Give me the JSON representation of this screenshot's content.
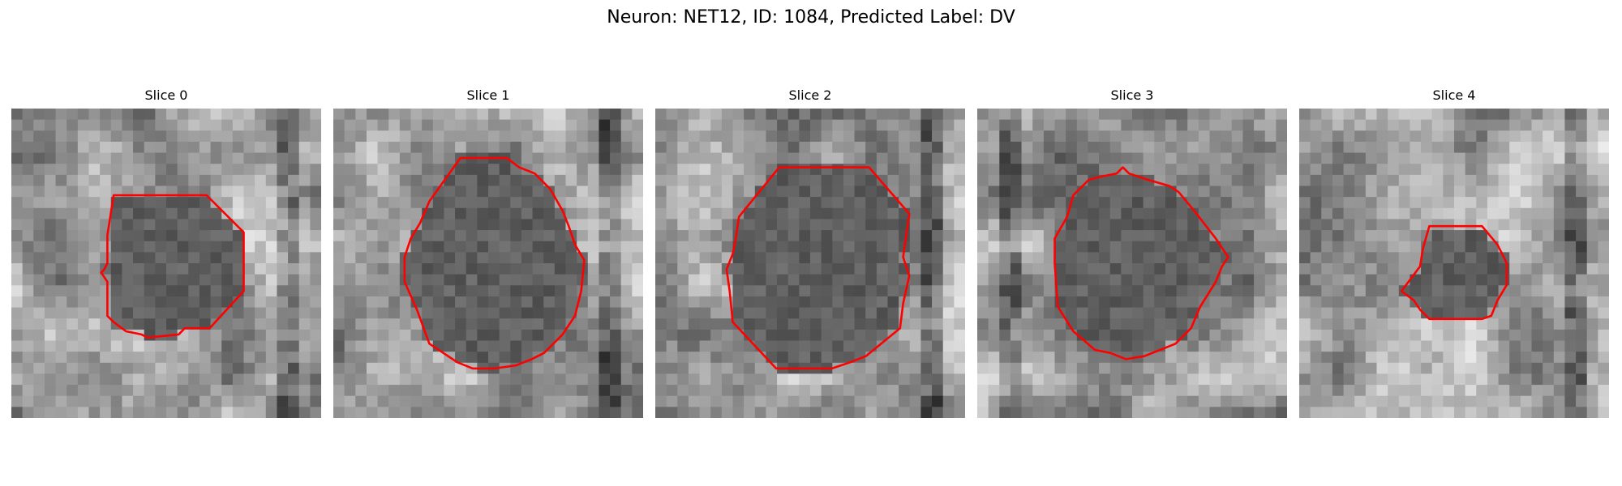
{
  "figure": {
    "title": "Neuron: NET12, ID: 1084, Predicted Label: DV"
  },
  "slices": [
    {
      "label": "Slice 0",
      "seed": 11,
      "darkCol": "right",
      "contour": [
        [
          0.33,
          0.28
        ],
        [
          0.63,
          0.28
        ],
        [
          0.75,
          0.4
        ],
        [
          0.75,
          0.59
        ],
        [
          0.64,
          0.71
        ],
        [
          0.56,
          0.71
        ],
        [
          0.54,
          0.73
        ],
        [
          0.44,
          0.74
        ],
        [
          0.42,
          0.73
        ],
        [
          0.37,
          0.72
        ],
        [
          0.33,
          0.69
        ],
        [
          0.31,
          0.67
        ],
        [
          0.31,
          0.56
        ],
        [
          0.29,
          0.53
        ],
        [
          0.3,
          0.52
        ],
        [
          0.31,
          0.5
        ],
        [
          0.31,
          0.41
        ]
      ]
    },
    {
      "label": "Slice 1",
      "seed": 23,
      "darkCol": "right",
      "contour": [
        [
          0.41,
          0.16
        ],
        [
          0.56,
          0.16
        ],
        [
          0.6,
          0.19
        ],
        [
          0.65,
          0.21
        ],
        [
          0.7,
          0.26
        ],
        [
          0.74,
          0.33
        ],
        [
          0.76,
          0.38
        ],
        [
          0.78,
          0.44
        ],
        [
          0.81,
          0.49
        ],
        [
          0.8,
          0.59
        ],
        [
          0.78,
          0.67
        ],
        [
          0.74,
          0.73
        ],
        [
          0.68,
          0.79
        ],
        [
          0.64,
          0.81
        ],
        [
          0.59,
          0.83
        ],
        [
          0.52,
          0.84
        ],
        [
          0.45,
          0.84
        ],
        [
          0.4,
          0.82
        ],
        [
          0.31,
          0.76
        ],
        [
          0.27,
          0.65
        ],
        [
          0.23,
          0.56
        ],
        [
          0.23,
          0.48
        ],
        [
          0.25,
          0.42
        ],
        [
          0.28,
          0.37
        ],
        [
          0.31,
          0.3
        ]
      ]
    },
    {
      "label": "Slice 2",
      "seed": 37,
      "darkCol": "right",
      "contour": [
        [
          0.4,
          0.19
        ],
        [
          0.69,
          0.19
        ],
        [
          0.82,
          0.34
        ],
        [
          0.8,
          0.48
        ],
        [
          0.82,
          0.54
        ],
        [
          0.8,
          0.63
        ],
        [
          0.79,
          0.71
        ],
        [
          0.68,
          0.8
        ],
        [
          0.63,
          0.82
        ],
        [
          0.57,
          0.84
        ],
        [
          0.39,
          0.84
        ],
        [
          0.25,
          0.69
        ],
        [
          0.24,
          0.59
        ],
        [
          0.23,
          0.52
        ],
        [
          0.25,
          0.47
        ],
        [
          0.26,
          0.42
        ],
        [
          0.27,
          0.35
        ]
      ]
    },
    {
      "label": "Slice 3",
      "seed": 49,
      "darkCol": "left",
      "contour": [
        [
          0.36,
          0.23
        ],
        [
          0.4,
          0.22
        ],
        [
          0.45,
          0.21
        ],
        [
          0.47,
          0.19
        ],
        [
          0.49,
          0.21
        ],
        [
          0.55,
          0.23
        ],
        [
          0.62,
          0.25
        ],
        [
          0.65,
          0.27
        ],
        [
          0.7,
          0.33
        ],
        [
          0.77,
          0.42
        ],
        [
          0.81,
          0.48
        ],
        [
          0.79,
          0.51
        ],
        [
          0.77,
          0.56
        ],
        [
          0.72,
          0.64
        ],
        [
          0.69,
          0.71
        ],
        [
          0.64,
          0.76
        ],
        [
          0.59,
          0.78
        ],
        [
          0.54,
          0.8
        ],
        [
          0.48,
          0.81
        ],
        [
          0.43,
          0.79
        ],
        [
          0.38,
          0.78
        ],
        [
          0.31,
          0.72
        ],
        [
          0.26,
          0.64
        ],
        [
          0.25,
          0.5
        ],
        [
          0.25,
          0.42
        ],
        [
          0.29,
          0.35
        ],
        [
          0.31,
          0.28
        ]
      ]
    },
    {
      "label": "Slice 4",
      "seed": 61,
      "darkCol": "right",
      "contour": [
        [
          0.42,
          0.38
        ],
        [
          0.59,
          0.38
        ],
        [
          0.64,
          0.44
        ],
        [
          0.67,
          0.5
        ],
        [
          0.67,
          0.57
        ],
        [
          0.64,
          0.62
        ],
        [
          0.62,
          0.67
        ],
        [
          0.59,
          0.68
        ],
        [
          0.42,
          0.68
        ],
        [
          0.39,
          0.65
        ],
        [
          0.37,
          0.62
        ],
        [
          0.33,
          0.59
        ],
        [
          0.39,
          0.51
        ],
        [
          0.4,
          0.45
        ]
      ]
    }
  ],
  "colors": {
    "contour": "#ff0000"
  }
}
